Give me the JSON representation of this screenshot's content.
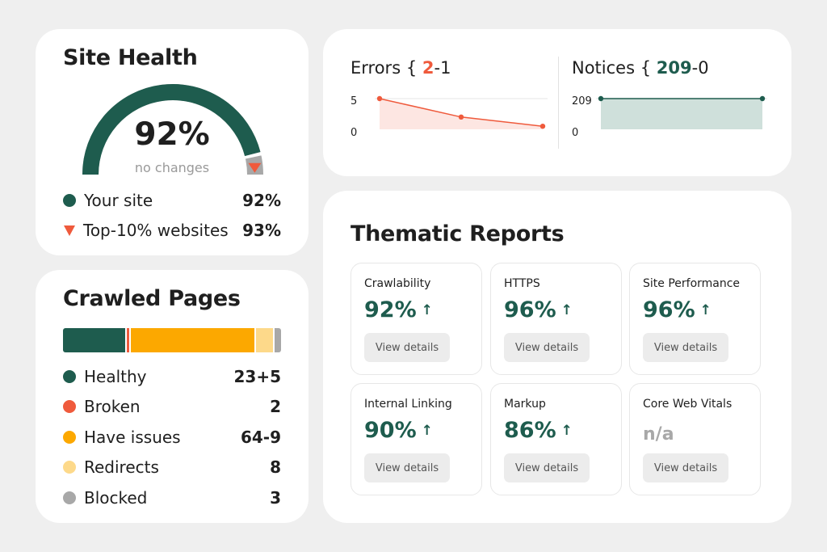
{
  "site_health": {
    "title": "Site Health",
    "value": "92%",
    "subtitle": "no changes",
    "gauge_fraction": 0.92,
    "legend": [
      {
        "label": "Your site",
        "value": "92%",
        "marker": "circle",
        "color": "#1e5c4e"
      },
      {
        "label": "Top-10% websites",
        "value": "93%",
        "marker": "triangle-down",
        "color": "#ef5a3c"
      }
    ]
  },
  "crawled_pages": {
    "title": "Crawled Pages",
    "segments": [
      {
        "label": "Healthy",
        "value": "23+5",
        "amount": 28,
        "color": "#1e5c4e"
      },
      {
        "label": "Broken",
        "value": "2",
        "amount": 2,
        "color": "#ef5a3c"
      },
      {
        "label": "Have issues",
        "value": "64-9",
        "amount": 55,
        "color": "#fca800"
      },
      {
        "label": "Redirects",
        "value": "8",
        "amount": 8,
        "color": "#fdd98a"
      },
      {
        "label": "Blocked",
        "value": "3",
        "amount": 3,
        "color": "#a8a8a8"
      }
    ]
  },
  "errors": {
    "label": "Errors",
    "brace": "{",
    "current": "2",
    "delta": "-1",
    "y_max_label": "5",
    "y_min_label": "0",
    "ylim": [
      0,
      5
    ],
    "values": [
      5,
      2,
      0.5
    ],
    "color": "#ef5a3c"
  },
  "notices": {
    "label": "Notices",
    "brace": "{",
    "current": "209",
    "delta": "-0",
    "y_max_label": "209",
    "y_min_label": "0",
    "ylim": [
      0,
      209
    ],
    "values": [
      209,
      209
    ],
    "color": "#1e5c4e"
  },
  "thematic": {
    "title": "Thematic Reports",
    "tiles": [
      {
        "name": "Crawlability",
        "value": "92%",
        "arrow": "↑",
        "button": "View details"
      },
      {
        "name": "HTTPS",
        "value": "96%",
        "arrow": "↑",
        "button": "View details"
      },
      {
        "name": "Site Performance",
        "value": "96%",
        "arrow": "↑",
        "button": "View details"
      },
      {
        "name": "Internal Linking",
        "value": "90%",
        "arrow": "↑",
        "button": "View details"
      },
      {
        "name": "Markup",
        "value": "86%",
        "arrow": "↑",
        "button": "View details"
      },
      {
        "name": "Core Web Vitals",
        "value": "n/a",
        "arrow": "",
        "button": "View details"
      }
    ]
  }
}
